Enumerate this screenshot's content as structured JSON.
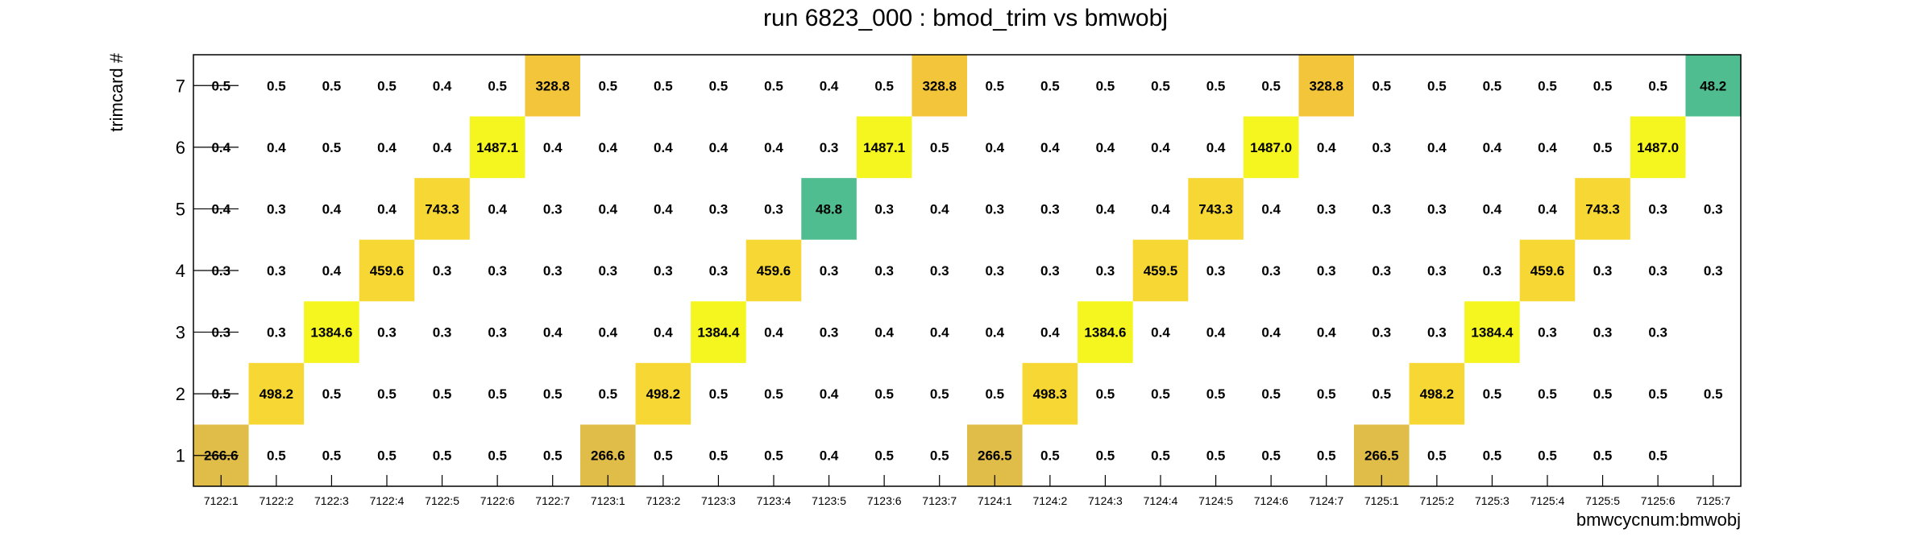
{
  "chart_data": {
    "type": "heatmap",
    "title": "run 6823_000 : bmod_trim vs bmwobj",
    "xlabel": "bmwcycnum:bmwobj",
    "ylabel": "trimcard #",
    "x_categories": [
      "7122:1",
      "7122:2",
      "7122:3",
      "7122:4",
      "7122:5",
      "7122:6",
      "7122:7",
      "7123:1",
      "7123:2",
      "7123:3",
      "7123:4",
      "7123:5",
      "7123:6",
      "7123:7",
      "7124:1",
      "7124:2",
      "7124:3",
      "7124:4",
      "7124:5",
      "7124:6",
      "7124:7",
      "7125:1",
      "7125:2",
      "7125:3",
      "7125:4",
      "7125:5",
      "7125:6",
      "7125:7"
    ],
    "y_categories": [
      "1",
      "2",
      "3",
      "4",
      "5",
      "6",
      "7"
    ],
    "values": [
      [
        "266.6",
        "0.5",
        "0.5",
        "0.5",
        "0.5",
        "0.5",
        "0.5",
        "266.6",
        "0.5",
        "0.5",
        "0.5",
        "0.4",
        "0.5",
        "0.5",
        "266.5",
        "0.5",
        "0.5",
        "0.5",
        "0.5",
        "0.5",
        "0.5",
        "266.5",
        "0.5",
        "0.5",
        "0.5",
        "0.5",
        "0.5",
        null
      ],
      [
        "0.5",
        "498.2",
        "0.5",
        "0.5",
        "0.5",
        "0.5",
        "0.5",
        "0.5",
        "498.2",
        "0.5",
        "0.5",
        "0.4",
        "0.5",
        "0.5",
        "0.5",
        "498.3",
        "0.5",
        "0.5",
        "0.5",
        "0.5",
        "0.5",
        "0.5",
        "498.2",
        "0.5",
        "0.5",
        "0.5",
        "0.5",
        "0.5"
      ],
      [
        "0.3",
        "0.3",
        "1384.6",
        "0.3",
        "0.3",
        "0.3",
        "0.4",
        "0.4",
        "0.4",
        "1384.4",
        "0.4",
        "0.3",
        "0.4",
        "0.4",
        "0.4",
        "0.4",
        "1384.6",
        "0.4",
        "0.4",
        "0.4",
        "0.4",
        "0.3",
        "0.3",
        "1384.4",
        "0.3",
        "0.3",
        "0.3",
        null
      ],
      [
        "0.3",
        "0.3",
        "0.4",
        "459.6",
        "0.3",
        "0.3",
        "0.3",
        "0.3",
        "0.3",
        "0.3",
        "459.6",
        "0.3",
        "0.3",
        "0.3",
        "0.3",
        "0.3",
        "0.3",
        "459.5",
        "0.3",
        "0.3",
        "0.3",
        "0.3",
        "0.3",
        "0.3",
        "459.6",
        "0.3",
        "0.3",
        "0.3"
      ],
      [
        "0.4",
        "0.3",
        "0.4",
        "0.4",
        "743.3",
        "0.4",
        "0.3",
        "0.4",
        "0.4",
        "0.3",
        "0.3",
        "48.8",
        "0.3",
        "0.4",
        "0.3",
        "0.3",
        "0.4",
        "0.4",
        "743.3",
        "0.4",
        "0.3",
        "0.3",
        "0.3",
        "0.4",
        "0.4",
        "743.3",
        "0.3",
        "0.3"
      ],
      [
        "0.4",
        "0.4",
        "0.5",
        "0.4",
        "0.4",
        "1487.1",
        "0.4",
        "0.4",
        "0.4",
        "0.4",
        "0.4",
        "0.3",
        "1487.1",
        "0.5",
        "0.4",
        "0.4",
        "0.4",
        "0.4",
        "0.4",
        "1487.0",
        "0.4",
        "0.3",
        "0.4",
        "0.4",
        "0.4",
        "0.5",
        "1487.0",
        null
      ],
      [
        "0.5",
        "0.5",
        "0.5",
        "0.5",
        "0.4",
        "0.5",
        "328.8",
        "0.5",
        "0.5",
        "0.5",
        "0.5",
        "0.4",
        "0.5",
        "328.8",
        "0.5",
        "0.5",
        "0.5",
        "0.5",
        "0.5",
        "0.5",
        "328.8",
        "0.5",
        "0.5",
        "0.5",
        "0.5",
        "0.5",
        "0.5",
        "48.2"
      ]
    ],
    "colors": {
      "high": "#f5f520",
      "upper_mid": "#f7d733",
      "mid": "#f3c53a",
      "lower_mid": "#e0bd48",
      "low": "#4fbd8f",
      "frame": "#000000"
    }
  }
}
